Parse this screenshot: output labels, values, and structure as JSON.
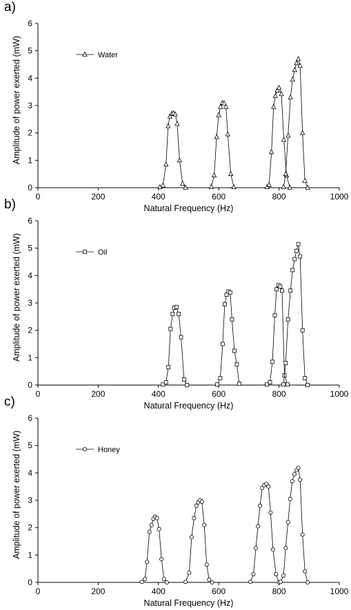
{
  "chart_data": [
    {
      "type": "line",
      "panel_label": "a)",
      "legend": "Water",
      "marker": "triangle",
      "xlabel": "Natural Frequency (Hz)",
      "ylabel": "Amplitude of power exerted (mW)",
      "xlim": [
        0,
        1000
      ],
      "ylim": [
        0,
        6
      ],
      "xticks": [
        "0",
        "200",
        "400",
        "600",
        "800",
        "1000"
      ],
      "yticks": [
        "0",
        "1",
        "2",
        "3",
        "4",
        "5",
        "6"
      ],
      "series": [
        {
          "x": [
            405,
            415,
            425,
            432,
            438,
            444,
            450,
            456,
            462,
            470,
            480,
            490
          ],
          "y": [
            0.02,
            0.08,
            0.85,
            2.25,
            2.6,
            2.7,
            2.72,
            2.68,
            2.33,
            1.0,
            0.15,
            0.0
          ]
        },
        {
          "x": [
            575,
            585,
            593,
            600,
            606,
            612,
            618,
            624,
            630,
            640,
            650
          ],
          "y": [
            0.02,
            0.45,
            1.85,
            2.65,
            2.95,
            3.1,
            3.08,
            2.95,
            1.95,
            0.5,
            0.02
          ]
        },
        {
          "x": [
            760,
            767,
            775,
            782,
            788,
            794,
            800,
            808,
            816,
            825,
            836
          ],
          "y": [
            0.02,
            0.1,
            1.3,
            2.95,
            3.35,
            3.55,
            3.65,
            3.42,
            1.75,
            0.45,
            0.0
          ]
        },
        {
          "x": [
            815,
            822,
            830,
            838,
            845,
            852,
            858,
            864,
            870,
            878,
            886,
            895
          ],
          "y": [
            0.02,
            0.5,
            1.9,
            3.3,
            3.95,
            4.3,
            4.55,
            4.7,
            4.45,
            2.0,
            0.25,
            0.0
          ]
        }
      ]
    },
    {
      "type": "line",
      "panel_label": "b)",
      "legend": "Oil",
      "marker": "square",
      "xlabel": "Natural Frequency (Hz)",
      "ylabel": "Amplitude of power exerted (mW)",
      "xlim": [
        0,
        1000
      ],
      "ylim": [
        0,
        6
      ],
      "xticks": [
        "0",
        "200",
        "400",
        "600",
        "800",
        "1000"
      ],
      "yticks": [
        "0",
        "1",
        "2",
        "3",
        "4",
        "5",
        "6"
      ],
      "series": [
        {
          "x": [
            415,
            425,
            433,
            440,
            447,
            453,
            460,
            467,
            475,
            485,
            495
          ],
          "y": [
            0.02,
            0.1,
            0.65,
            2.05,
            2.6,
            2.82,
            2.85,
            2.6,
            1.75,
            0.2,
            0.0
          ]
        },
        {
          "x": [
            595,
            605,
            613,
            620,
            626,
            632,
            638,
            644,
            652,
            660,
            668
          ],
          "y": [
            0.02,
            0.25,
            1.5,
            2.95,
            3.3,
            3.42,
            3.38,
            2.4,
            1.25,
            0.75,
            0.05
          ]
        },
        {
          "x": [
            760,
            770,
            778,
            786,
            792,
            798,
            804,
            810,
            818,
            828
          ],
          "y": [
            0.02,
            0.1,
            0.85,
            2.55,
            3.5,
            3.65,
            3.6,
            3.45,
            0.35,
            0.02
          ]
        },
        {
          "x": [
            815,
            822,
            830,
            838,
            845,
            852,
            858,
            864,
            870,
            878,
            886,
            895
          ],
          "y": [
            0.02,
            0.8,
            2.4,
            3.45,
            4.2,
            4.6,
            4.9,
            5.15,
            4.7,
            2.0,
            0.25,
            0.0
          ]
        }
      ]
    },
    {
      "type": "line",
      "panel_label": "c)",
      "legend": "Honey",
      "marker": "circle",
      "xlabel": "Natural Frequency (Hz)",
      "ylabel": "Amplitude of power exerted (mW)",
      "xlim": [
        0,
        1000
      ],
      "ylim": [
        0,
        6
      ],
      "xticks": [
        "0",
        "200",
        "400",
        "600",
        "800",
        "1000"
      ],
      "yticks": [
        "0",
        "1",
        "2",
        "3",
        "4",
        "5",
        "6"
      ],
      "series": [
        {
          "x": [
            345,
            355,
            362,
            370,
            377,
            383,
            389,
            395,
            402,
            410,
            418,
            428
          ],
          "y": [
            0.02,
            0.12,
            0.75,
            1.85,
            2.1,
            2.32,
            2.4,
            2.35,
            1.95,
            0.85,
            0.12,
            0.0
          ]
        },
        {
          "x": [
            490,
            502,
            510,
            518,
            526,
            532,
            538,
            544,
            552,
            560,
            568,
            578
          ],
          "y": [
            0.02,
            0.35,
            1.65,
            2.35,
            2.8,
            2.92,
            3.0,
            2.95,
            2.1,
            0.65,
            0.1,
            0.0
          ]
        },
        {
          "x": [
            705,
            715,
            723,
            730,
            737,
            744,
            751,
            758,
            765,
            772,
            780,
            790,
            800
          ],
          "y": [
            0.02,
            0.3,
            1.25,
            2.05,
            2.8,
            3.45,
            3.55,
            3.6,
            3.5,
            2.55,
            1.2,
            0.3,
            0.0
          ]
        },
        {
          "x": [
            805,
            815,
            822,
            830,
            837,
            844,
            851,
            858,
            864,
            870,
            878,
            886,
            895
          ],
          "y": [
            0.02,
            0.25,
            1.25,
            2.2,
            3.05,
            3.7,
            3.95,
            4.1,
            4.18,
            3.75,
            1.75,
            0.4,
            0.0
          ]
        }
      ]
    }
  ]
}
